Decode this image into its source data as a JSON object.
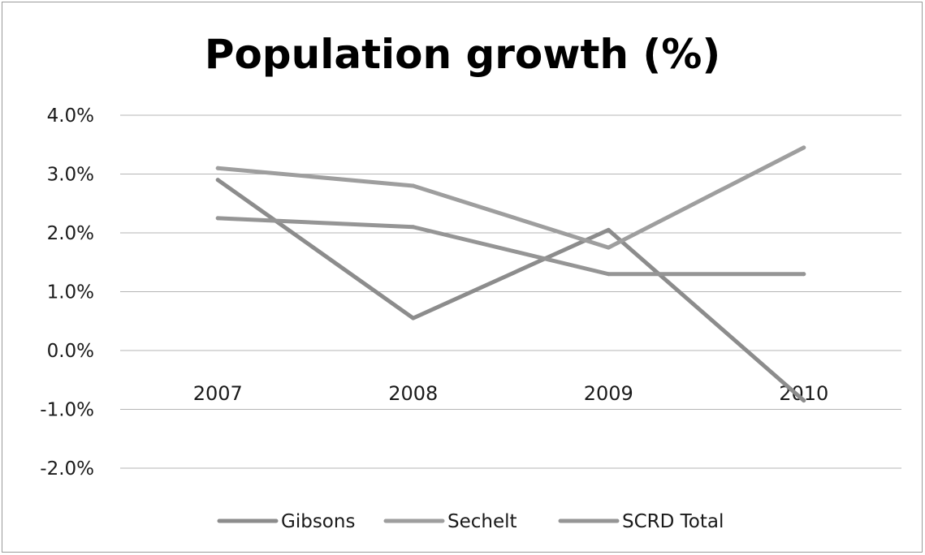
{
  "chart_data": {
    "type": "line",
    "title": "Population growth (%)",
    "xlabel": "",
    "ylabel": "",
    "categories": [
      "2007",
      "2008",
      "2009",
      "2010"
    ],
    "ylim": [
      -2.0,
      4.0
    ],
    "yticks": [
      4.0,
      3.0,
      2.0,
      1.0,
      0.0,
      -1.0,
      -2.0
    ],
    "ytick_labels": [
      "4.0%",
      "3.0%",
      "2.0%",
      "1.0%",
      "0.0%",
      "-1.0%",
      "-2.0%"
    ],
    "grid": true,
    "legend_position": "bottom",
    "series": [
      {
        "name": "Gibsons",
        "values": [
          2.9,
          0.55,
          2.05,
          -0.85
        ],
        "color": "#8c8c8c"
      },
      {
        "name": "Sechelt",
        "values": [
          3.1,
          2.8,
          1.75,
          3.45
        ],
        "color": "#9e9e9e"
      },
      {
        "name": "SCRD Total",
        "values": [
          2.25,
          2.1,
          1.3,
          1.3
        ],
        "color": "#959595"
      }
    ]
  }
}
